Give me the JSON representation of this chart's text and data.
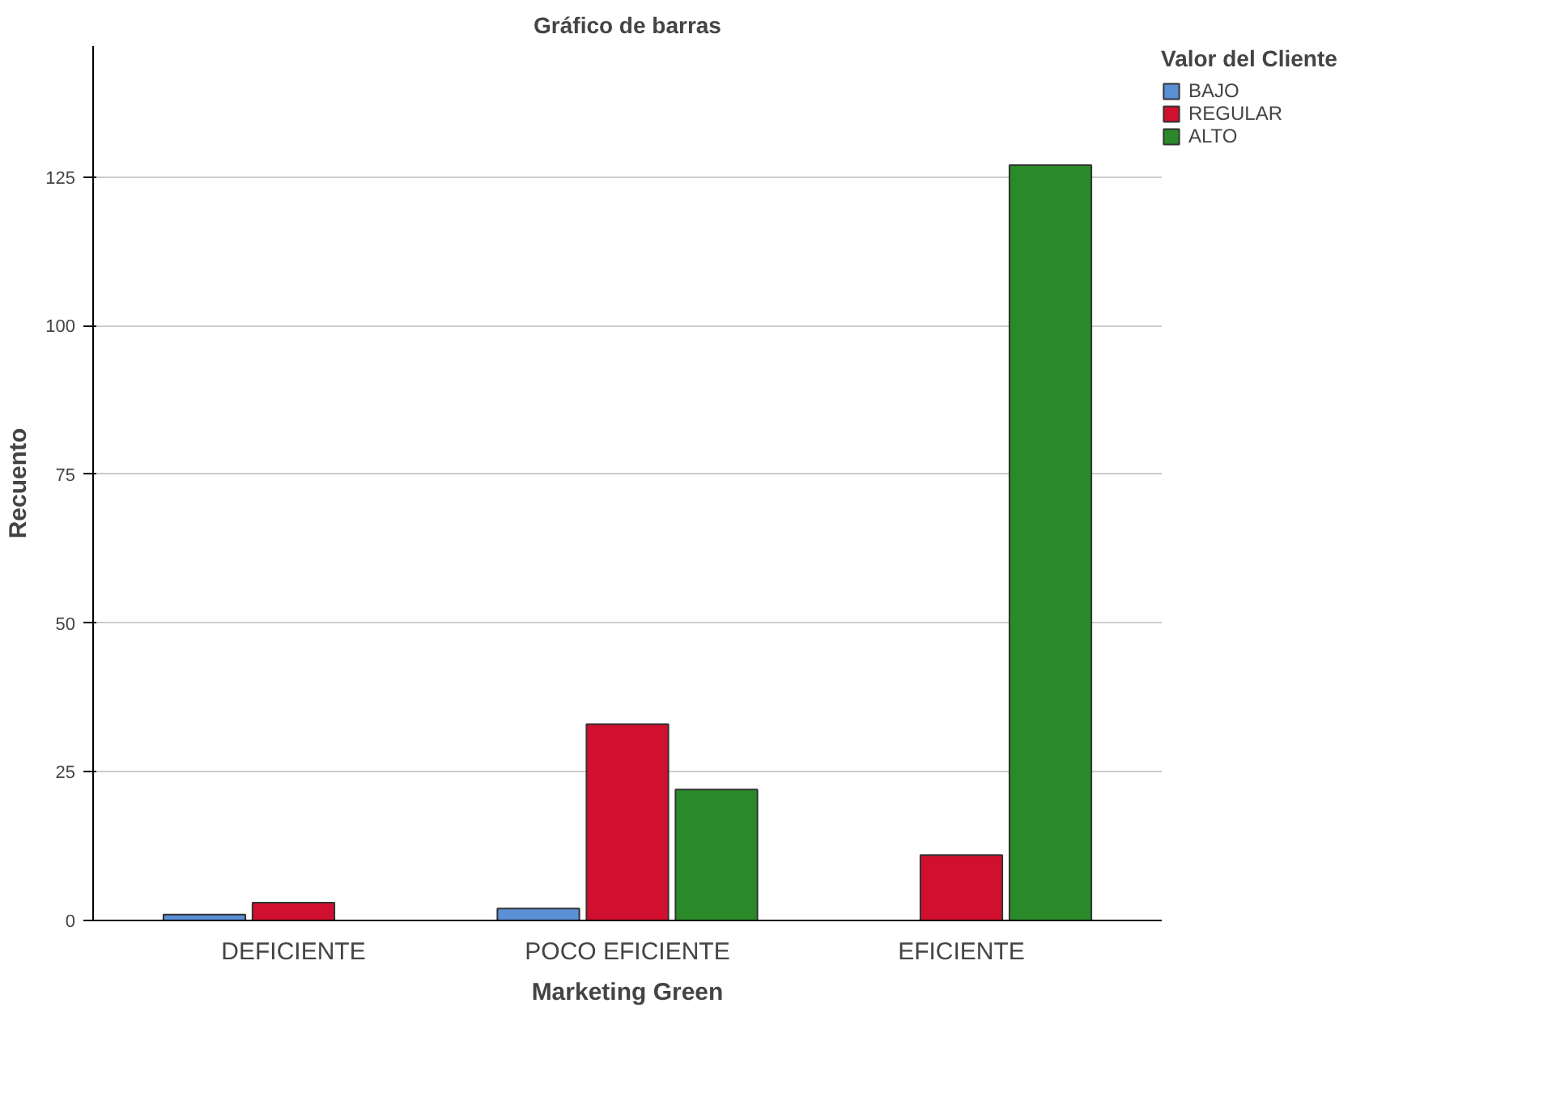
{
  "chart_data": {
    "type": "bar",
    "title": "Gráfico de barras",
    "xlabel": "Marketing Green",
    "ylabel": "Recuento",
    "legend_title": "Valor del Cliente",
    "categories": [
      "DEFICIENTE",
      "POCO EFICIENTE",
      "EFICIENTE"
    ],
    "series": [
      {
        "name": "BAJO",
        "color": "#5b8fd6",
        "values": [
          1,
          2,
          null
        ]
      },
      {
        "name": "REGULAR",
        "color": "#d0102e",
        "values": [
          3,
          33,
          11
        ]
      },
      {
        "name": "ALTO",
        "color": "#2a8a2a",
        "values": [
          null,
          22,
          127
        ]
      }
    ],
    "ylim": [
      0,
      147
    ],
    "yticks": [
      0,
      25,
      50,
      75,
      100,
      125
    ],
    "grid": "y",
    "legend": "top right"
  }
}
